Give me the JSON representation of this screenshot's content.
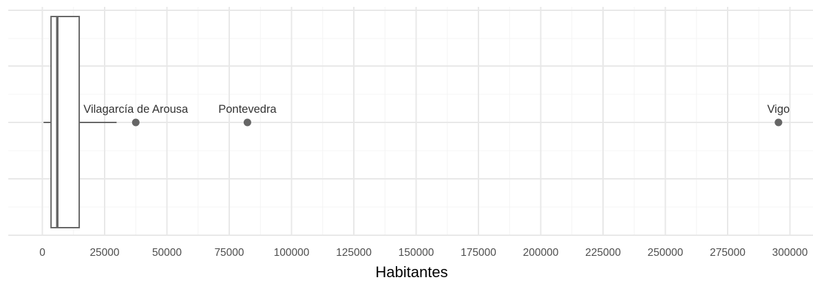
{
  "chart_data": {
    "type": "boxplot",
    "orientation": "horizontal",
    "title": "",
    "xlabel": "Habitantes",
    "ylabel": "",
    "xlim": [
      -14000,
      307000
    ],
    "x_ticks": [
      0,
      25000,
      50000,
      75000,
      100000,
      125000,
      150000,
      175000,
      200000,
      225000,
      250000,
      275000,
      300000
    ],
    "x_tick_labels": [
      "0",
      "25000",
      "50000",
      "75000",
      "100000",
      "125000",
      "150000",
      "175000",
      "200000",
      "225000",
      "250000",
      "275000",
      "300000"
    ],
    "grid": true,
    "box": {
      "whisker_low": 500,
      "q1": 3500,
      "median": 6000,
      "q3": 14800,
      "whisker_high": 29800
    },
    "outliers": [
      {
        "label": "Vilagarcía de Arousa",
        "value": 37500
      },
      {
        "label": "Pontevedra",
        "value": 82300
      },
      {
        "label": "Vigo",
        "value": 295400
      }
    ],
    "colors": {
      "box_stroke": "#666666",
      "point": "#666666",
      "grid_major": "#e8e8e8",
      "grid_minor": "#f4f4f4",
      "text": "#4d4d4d"
    }
  }
}
